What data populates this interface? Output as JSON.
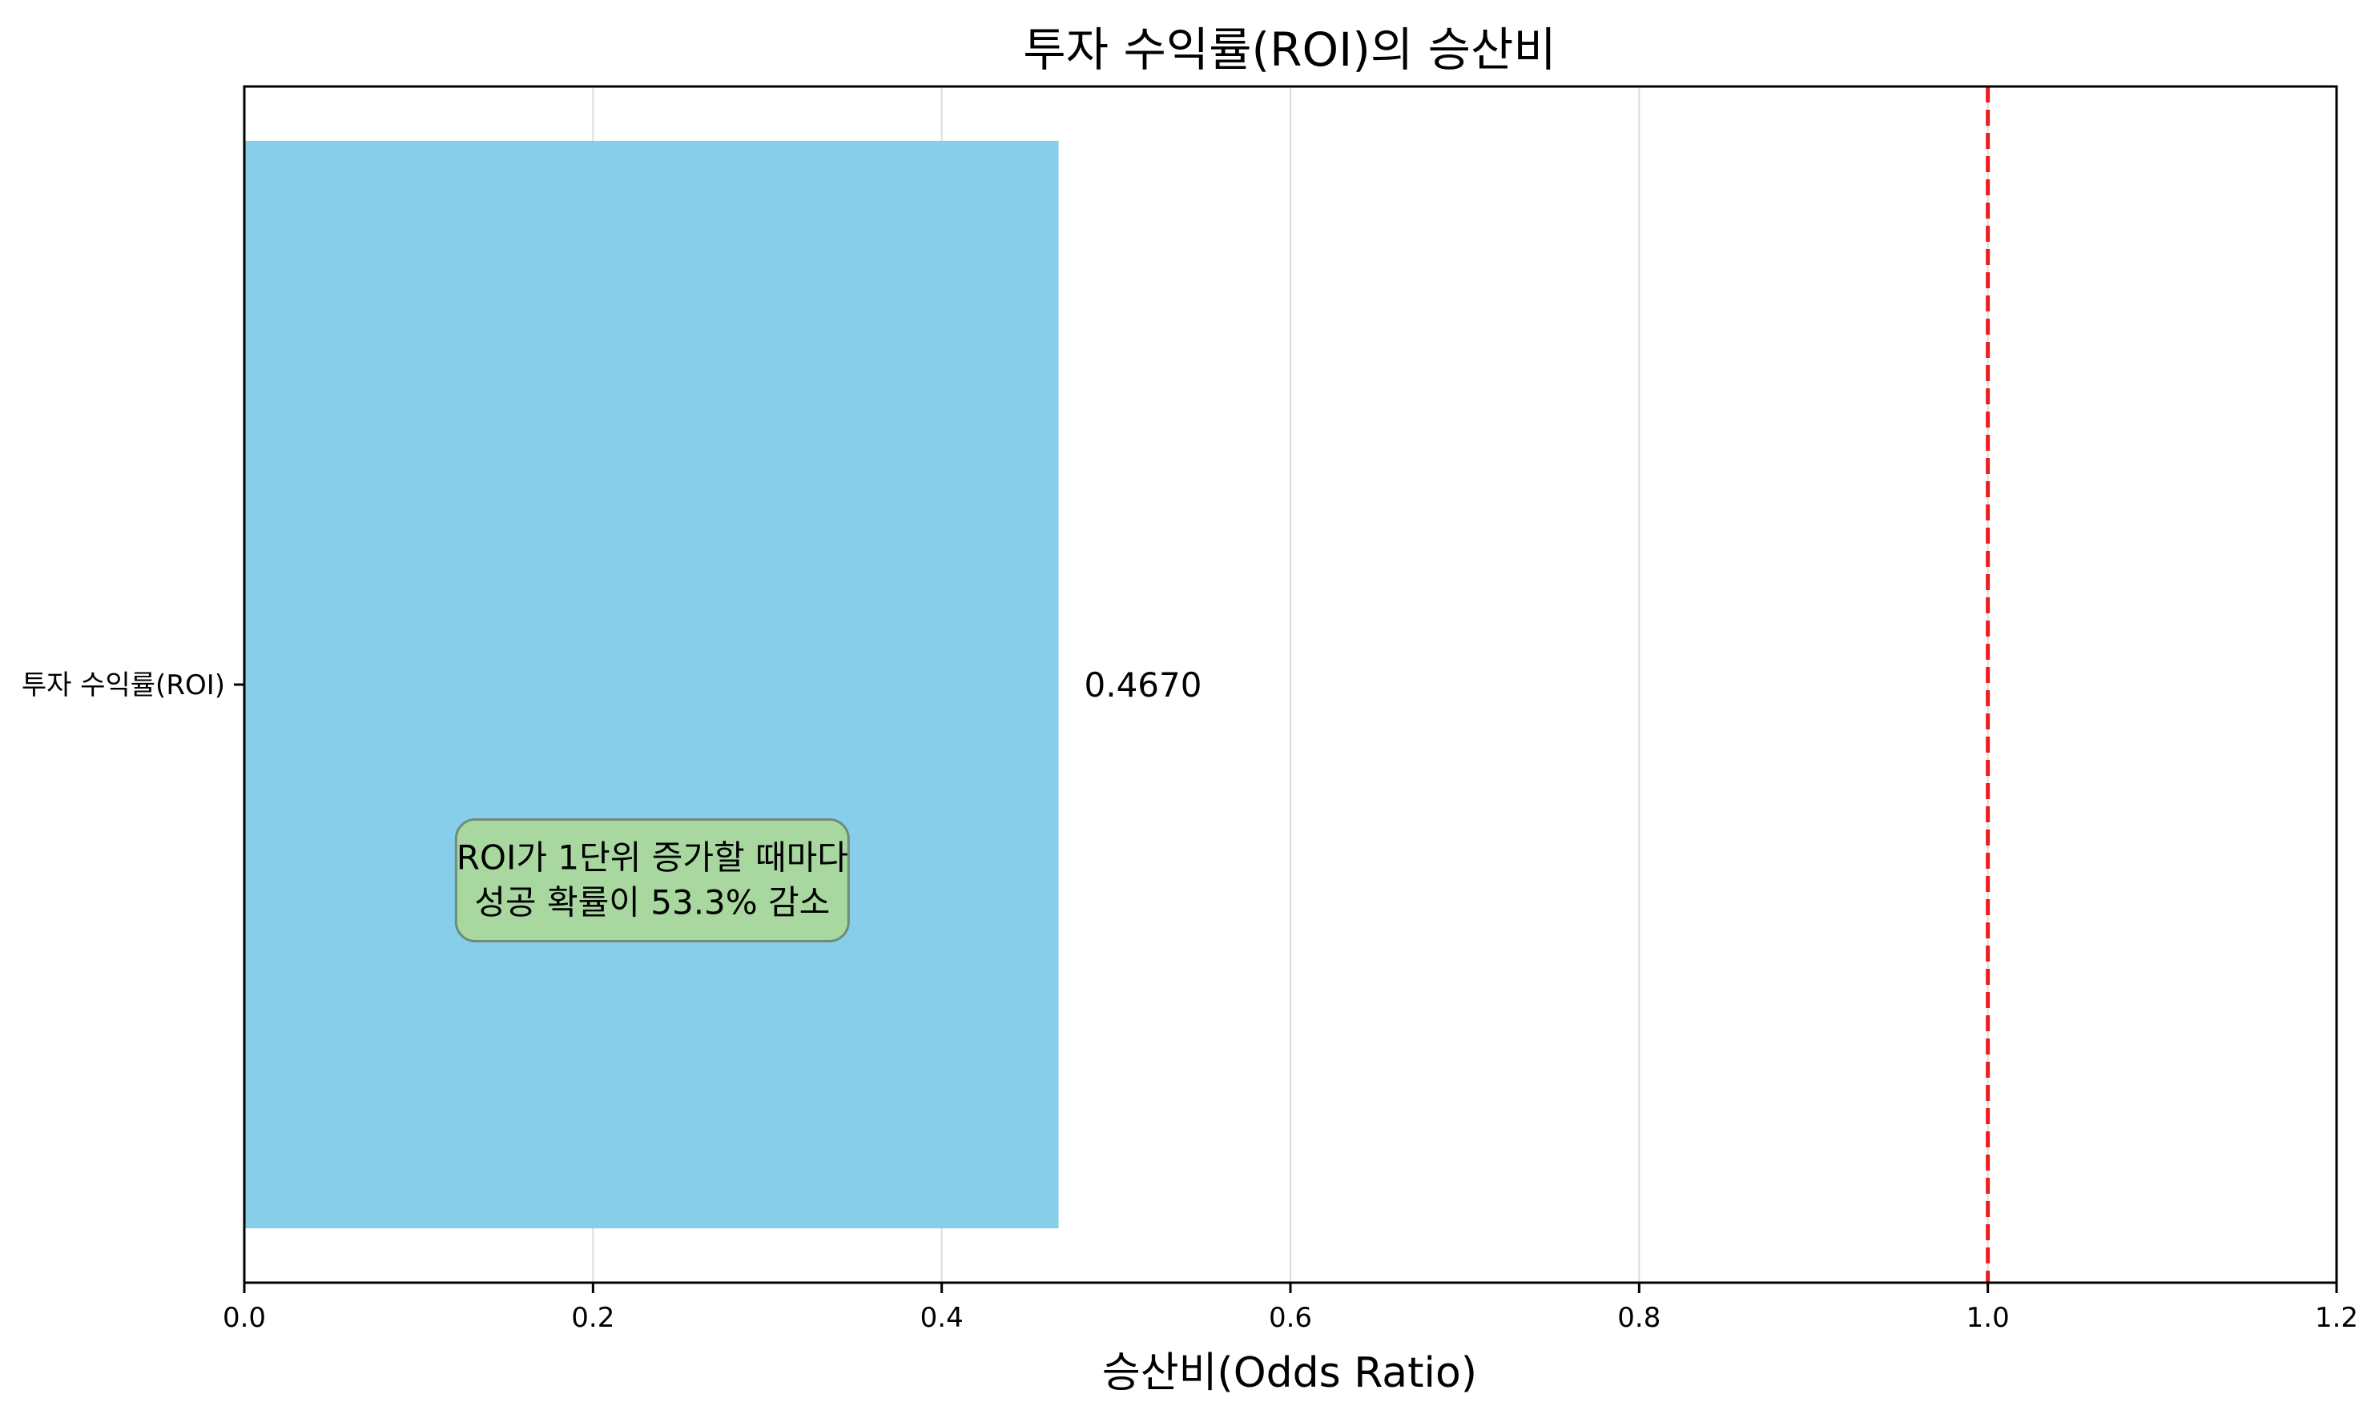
{
  "chart_data": {
    "type": "bar",
    "orientation": "horizontal",
    "title": "투자 수익률(ROI)의 승산비",
    "xlabel": "승산비(Odds Ratio)",
    "ylabel": "",
    "categories": [
      "투자 수익률(ROI)"
    ],
    "values": [
      0.467
    ],
    "value_labels": [
      "0.4670"
    ],
    "xlim": [
      0,
      1.2
    ],
    "x_ticks": [
      0.0,
      0.2,
      0.4,
      0.6,
      0.8,
      1.0,
      1.2
    ],
    "x_tick_labels": [
      "0.0",
      "0.2",
      "0.4",
      "0.6",
      "0.8",
      "1.0",
      "1.2"
    ],
    "reference_line": {
      "x": 1.0,
      "style": "dashed",
      "color": "#ee1c1c"
    },
    "grid": {
      "x": true,
      "y": false
    },
    "bar_color": "#87ceeb",
    "annotation": {
      "lines": [
        "ROI가 1단위 증가할 때마다",
        "성공 확률이 53.3% 감소"
      ],
      "x": 0.234,
      "y": -0.18,
      "box_color": "#a8d8a0"
    }
  }
}
